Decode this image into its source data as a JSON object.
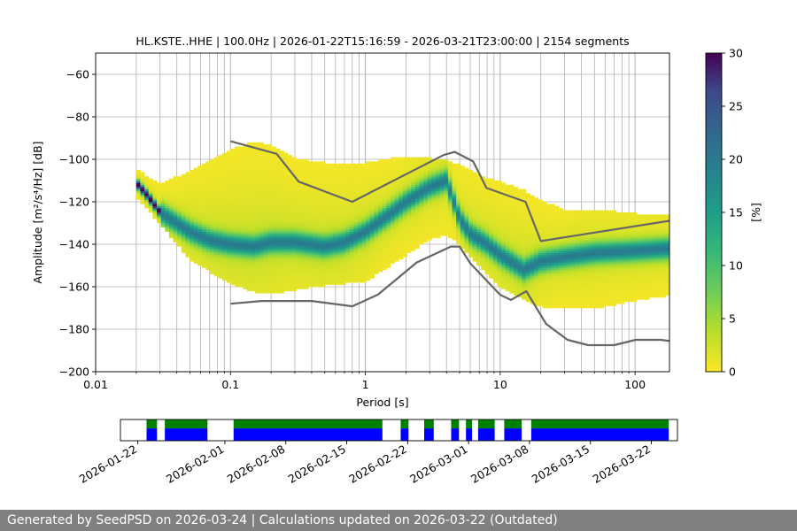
{
  "chart_data": [
    {
      "type": "heatmap",
      "title": "HL.KSTE..HHE | 100.0Hz | 2026-01-22T15:16:59 - 2026-03-21T23:00:00 | 2154 segments",
      "xlabel": "Period [s]",
      "ylabel": "Amplitude [m²/s⁴/Hz] [dB]",
      "xscale": "log",
      "xlim": [
        0.01,
        180
      ],
      "ylim": [
        -200,
        -50
      ],
      "x_ticks": [
        0.01,
        0.1,
        1,
        10,
        100
      ],
      "x_tick_labels": [
        "0.01",
        "0.1",
        "1",
        "10",
        "100"
      ],
      "y_ticks": [
        -200,
        -180,
        -160,
        -140,
        -120,
        -100,
        -80,
        -60
      ],
      "y_tick_labels": [
        "−200",
        "−180",
        "−160",
        "−140",
        "−120",
        "−100",
        "−80",
        "−60"
      ],
      "grid": true,
      "colormap": "viridis",
      "colorbar": {
        "label": "[%]",
        "range": [
          0,
          30
        ],
        "ticks": [
          0,
          5,
          10,
          15,
          20,
          25,
          30
        ],
        "tick_labels": [
          "0",
          "5",
          "10",
          "15",
          "20",
          "25",
          "30"
        ]
      },
      "mode_curve": {
        "periods": [
          0.02,
          0.025,
          0.03,
          0.04,
          0.05,
          0.07,
          0.1,
          0.15,
          0.2,
          0.3,
          0.5,
          0.7,
          1,
          1.5,
          2,
          3,
          4,
          5,
          6,
          8,
          10,
          15,
          20,
          30,
          50,
          100,
          170
        ],
        "values": [
          -111,
          -118,
          -125,
          -130,
          -134,
          -138,
          -140,
          -141,
          -139,
          -139,
          -141,
          -139,
          -134,
          -126,
          -120,
          -113,
          -110,
          -128,
          -135,
          -140,
          -145,
          -152,
          -148,
          -146,
          -144,
          -143,
          -142
        ]
      },
      "band_upper": {
        "periods": [
          0.02,
          0.03,
          0.05,
          0.1,
          0.15,
          0.2,
          0.3,
          0.5,
          1,
          2,
          3,
          4,
          5,
          7,
          10,
          15,
          20,
          30,
          50,
          100,
          170
        ],
        "values": [
          -105,
          -112,
          -106,
          -96,
          -92,
          -94,
          -100,
          -102,
          -102,
          -99,
          -100,
          -101,
          -103,
          -108,
          -111,
          -115,
          -120,
          -124,
          -124,
          -126,
          -126
        ]
      },
      "band_lower": {
        "periods": [
          0.02,
          0.03,
          0.05,
          0.1,
          0.15,
          0.2,
          0.3,
          0.5,
          1,
          2,
          3,
          4,
          5,
          7,
          10,
          15,
          20,
          30,
          50,
          100,
          170
        ],
        "values": [
          -117,
          -130,
          -147,
          -158,
          -162,
          -163,
          -161,
          -159,
          -157,
          -145,
          -137,
          -135,
          -140,
          -150,
          -160,
          -166,
          -169,
          -170,
          -170,
          -166,
          -164
        ]
      },
      "noise_model_high": {
        "periods": [
          0.1,
          0.22,
          0.32,
          0.8,
          3.8,
          4.6,
          6.3,
          7.9,
          15.4,
          20,
          354.8
        ],
        "values": [
          -91.5,
          -97.4,
          -110.5,
          -120,
          -98,
          -96.5,
          -101,
          -113.5,
          -120,
          -138.5,
          -126
        ]
      },
      "noise_model_low": {
        "periods": [
          0.1,
          0.17,
          0.4,
          0.8,
          1.24,
          2.4,
          4.3,
          5,
          6,
          10,
          12,
          15.6,
          21.9,
          31.6,
          45,
          70,
          101,
          154,
          328
        ],
        "values": [
          -168,
          -166.7,
          -166.7,
          -169.2,
          -163.7,
          -148.6,
          -141.1,
          -141.1,
          -149,
          -163.8,
          -166.2,
          -162.1,
          -177.5,
          -185,
          -187.5,
          -187.5,
          -185,
          -185,
          -187.5
        ]
      },
      "colors": {
        "noise_model": "#666666",
        "grid": "#b0b0b0"
      }
    },
    {
      "type": "timeline",
      "xlim": [
        "2026-01-20",
        "2026-03-25"
      ],
      "x_tick_labels": [
        "2026-01-22",
        "2026-02-01",
        "2026-02-08",
        "2026-02-15",
        "2026-02-22",
        "2026-03-01",
        "2026-03-08",
        "2026-03-15",
        "2026-03-22"
      ],
      "x_ticks": [
        "2026-01-22",
        "2026-02-01",
        "2026-02-08",
        "2026-02-15",
        "2026-02-22",
        "2026-03-01",
        "2026-03-08",
        "2026-03-15",
        "2026-03-22"
      ],
      "available_periods": [
        [
          "2026-01-23",
          "2026-01-24.2"
        ],
        [
          "2026-01-25.1",
          "2026-01-30"
        ],
        [
          "2026-02-02",
          "2026-02-19.1"
        ],
        [
          "2026-02-21.2",
          "2026-02-22.1"
        ],
        [
          "2026-02-23.9",
          "2026-02-25"
        ],
        [
          "2026-02-27",
          "2026-02-27.9"
        ],
        [
          "2026-02-28.7",
          "2026-03-01.4"
        ],
        [
          "2026-03-02.1",
          "2026-03-04"
        ],
        [
          "2026-03-05.1",
          "2026-03-07.1"
        ],
        [
          "2026-03-08.2",
          "2026-03-24"
        ]
      ],
      "colors": {
        "top": "#008000",
        "bottom": "#0000ff"
      }
    }
  ],
  "footer": {
    "text": "Generated by SeedPSD on 2026-03-24 | Calculations updated on 2026-03-22 (Outdated)"
  }
}
